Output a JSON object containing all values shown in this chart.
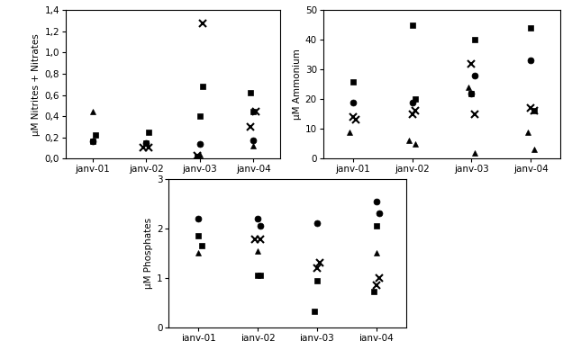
{
  "xticklabels": [
    "janv-01",
    "janv-02",
    "janv-03",
    "janv-04"
  ],
  "nitrites": {
    "ylabel": "µM Nitrites + Nitrates",
    "ylim": [
      0,
      1.4
    ],
    "yticks": [
      0.0,
      0.2,
      0.4,
      0.6,
      0.8,
      1.0,
      1.2,
      1.4
    ],
    "yticklabels": [
      "0,0",
      "0,2",
      "0,4",
      "0,6",
      "0,8",
      "1,0",
      "1,2",
      "1,4"
    ],
    "square": {
      "x": [
        1.0,
        1.05,
        2.0,
        2.05,
        2.95,
        3.0,
        3.05,
        3.95,
        4.0
      ],
      "y": [
        0.16,
        0.22,
        0.15,
        0.25,
        0.02,
        0.4,
        0.68,
        0.62,
        0.44
      ]
    },
    "circle": {
      "x": [
        1.0,
        2.0,
        3.0,
        4.0
      ],
      "y": [
        0.16,
        0.15,
        0.14,
        0.17
      ]
    },
    "triangle": {
      "x": [
        1.0,
        3.0,
        4.0
      ],
      "y": [
        0.44,
        0.04,
        0.12
      ]
    },
    "cross": {
      "x": [
        1.95,
        2.05,
        2.95,
        3.05,
        3.95,
        4.05
      ],
      "y": [
        0.1,
        0.1,
        0.03,
        1.28,
        0.3,
        0.44
      ]
    }
  },
  "ammonium": {
    "ylabel": "µM Ammonium",
    "ylim": [
      0,
      50
    ],
    "yticks": [
      0,
      10,
      20,
      30,
      40,
      50
    ],
    "yticklabels": [
      "0",
      "10",
      "20",
      "30",
      "40",
      "50"
    ],
    "square": {
      "x": [
        1.0,
        2.0,
        2.05,
        3.0,
        3.05,
        4.0,
        4.05
      ],
      "y": [
        26,
        45,
        20,
        22,
        40,
        44,
        16
      ]
    },
    "circle": {
      "x": [
        1.0,
        2.0,
        3.0,
        3.05,
        4.0
      ],
      "y": [
        19,
        19,
        22,
        28,
        33
      ]
    },
    "triangle": {
      "x": [
        0.95,
        1.95,
        2.05,
        2.95,
        3.05,
        3.95,
        4.05
      ],
      "y": [
        9,
        6,
        5,
        24,
        2,
        9,
        3
      ]
    },
    "cross": {
      "x": [
        1.0,
        1.05,
        2.0,
        2.05,
        3.0,
        3.05,
        4.0,
        4.05
      ],
      "y": [
        14,
        13,
        15,
        16,
        32,
        15,
        17,
        16
      ]
    }
  },
  "phosphates": {
    "ylabel": "µM Phosphates",
    "ylim": [
      0,
      3
    ],
    "yticks": [
      0,
      1,
      2,
      3
    ],
    "yticklabels": [
      "0",
      "1",
      "2",
      "3"
    ],
    "square": {
      "x": [
        1.0,
        1.05,
        2.0,
        2.05,
        2.95,
        3.0,
        3.95,
        4.0
      ],
      "y": [
        1.85,
        1.65,
        1.05,
        1.05,
        0.32,
        0.95,
        0.72,
        2.05
      ]
    },
    "circle": {
      "x": [
        1.0,
        2.0,
        2.05,
        3.0,
        4.0,
        4.05
      ],
      "y": [
        2.2,
        2.2,
        2.05,
        2.1,
        2.55,
        2.3
      ]
    },
    "triangle": {
      "x": [
        1.0,
        2.0,
        4.0
      ],
      "y": [
        1.5,
        1.55,
        1.5
      ]
    },
    "cross": {
      "x": [
        1.95,
        2.05,
        3.0,
        3.05,
        4.0,
        4.05
      ],
      "y": [
        1.78,
        1.78,
        1.2,
        1.3,
        0.85,
        1.0
      ]
    }
  }
}
